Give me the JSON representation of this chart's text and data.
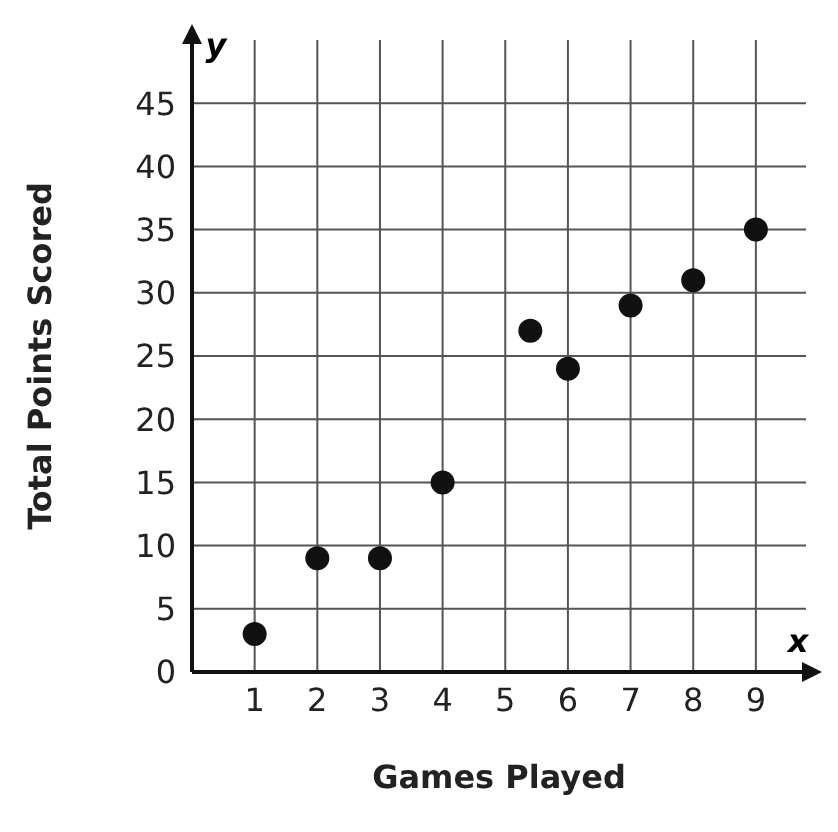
{
  "chart_data": {
    "type": "scatter",
    "xlabel": "Games Played",
    "ylabel": "Total Points Scored",
    "annotations": [
      "x",
      "y"
    ],
    "x": [
      1,
      2,
      3,
      4,
      5.4,
      6,
      7,
      8,
      9
    ],
    "series": [
      {
        "color": "#111111",
        "values": [
          3,
          9,
          9,
          15,
          27,
          24,
          29,
          31,
          35
        ]
      }
    ],
    "xlim": [
      0,
      9.8
    ],
    "xticks": [
      1,
      2,
      3,
      4,
      5,
      6,
      7,
      8,
      9
    ],
    "ylim": [
      0,
      50
    ],
    "yticks": [
      0,
      5,
      10,
      15,
      20,
      25,
      30,
      35,
      40,
      45
    ],
    "grid": true,
    "marker": "circle",
    "legend": false
  }
}
